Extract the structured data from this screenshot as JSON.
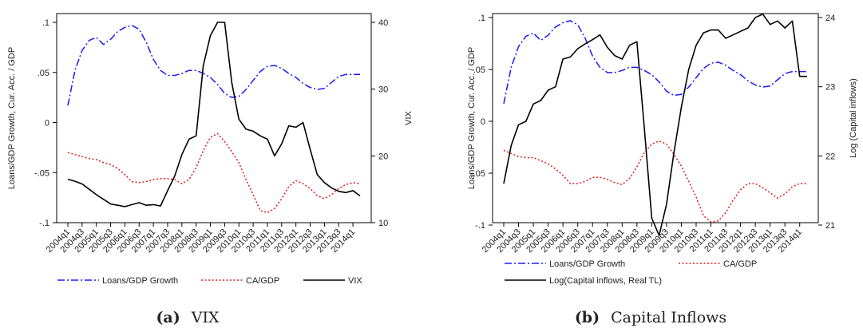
{
  "chart_data": [
    {
      "type": "line",
      "caption_label": "(a)",
      "caption_text": "VIX",
      "ylabel_left": "Loans/GDP Growth, Cur. Acc. / GDP",
      "ylabel_right": "VIX",
      "yticks_left": [
        ".1",
        ".05",
        "0",
        "-.05",
        "-.1"
      ],
      "yticks_left_values": [
        0.1,
        0.05,
        0,
        -0.05,
        -0.1
      ],
      "ylim_left": [
        -0.1,
        0.1
      ],
      "yticks_right": [
        "40",
        "30",
        "20",
        "10"
      ],
      "yticks_right_values": [
        40,
        30,
        20,
        10
      ],
      "ylim_right": [
        10,
        40
      ],
      "xticks": [
        "2004q1",
        "2004q3",
        "2005q1",
        "2005q3",
        "2006q1",
        "2006q3",
        "2007q1",
        "2007q3",
        "2008q1",
        "2008q3",
        "2009q1",
        "2009q3",
        "2010q1",
        "2010q3",
        "2011q1",
        "2011q3",
        "2012q1",
        "2012q3",
        "2013q1",
        "2013q3",
        "2014q1"
      ],
      "x": [
        "2004q1",
        "2004q2",
        "2004q3",
        "2004q4",
        "2005q1",
        "2005q2",
        "2005q3",
        "2005q4",
        "2006q1",
        "2006q2",
        "2006q3",
        "2006q4",
        "2007q1",
        "2007q2",
        "2007q3",
        "2007q4",
        "2008q1",
        "2008q2",
        "2008q3",
        "2008q4",
        "2009q1",
        "2009q2",
        "2009q3",
        "2009q4",
        "2010q1",
        "2010q2",
        "2010q3",
        "2010q4",
        "2011q1",
        "2011q2",
        "2011q3",
        "2011q4",
        "2012q1",
        "2012q2",
        "2012q3",
        "2012q4",
        "2013q1",
        "2013q2",
        "2013q3",
        "2013q4",
        "2014q1",
        "2014q2"
      ],
      "legend_position": "bottom",
      "series": [
        {
          "name": "Loans/GDP Growth",
          "axis": "left",
          "color": "#1a1aff",
          "dash": "dashdot",
          "values": [
            0.017,
            0.052,
            0.072,
            0.082,
            0.085,
            0.078,
            0.083,
            0.091,
            0.095,
            0.097,
            0.093,
            0.08,
            0.063,
            0.052,
            0.047,
            0.047,
            0.049,
            0.052,
            0.052,
            0.049,
            0.045,
            0.038,
            0.029,
            0.025,
            0.026,
            0.033,
            0.042,
            0.051,
            0.056,
            0.057,
            0.054,
            0.049,
            0.045,
            0.039,
            0.035,
            0.033,
            0.034,
            0.04,
            0.046,
            0.048,
            0.048,
            0.048
          ]
        },
        {
          "name": "CA/GDP",
          "axis": "left",
          "color": "#e41a1c",
          "dash": "dot",
          "values": [
            -0.03,
            -0.032,
            -0.034,
            -0.036,
            -0.037,
            -0.04,
            -0.042,
            -0.046,
            -0.052,
            -0.059,
            -0.06,
            -0.059,
            -0.057,
            -0.056,
            -0.056,
            -0.057,
            -0.061,
            -0.057,
            -0.045,
            -0.028,
            -0.015,
            -0.011,
            -0.019,
            -0.029,
            -0.04,
            -0.057,
            -0.072,
            -0.088,
            -0.09,
            -0.086,
            -0.076,
            -0.064,
            -0.058,
            -0.061,
            -0.066,
            -0.073,
            -0.076,
            -0.072,
            -0.066,
            -0.062,
            -0.06,
            -0.061
          ]
        },
        {
          "name": "VIX",
          "axis": "right",
          "color": "#000000",
          "dash": "solid",
          "values": [
            16.5,
            16.2,
            15.8,
            15.0,
            14.2,
            13.5,
            12.8,
            12.6,
            12.4,
            12.7,
            13.0,
            12.6,
            12.7,
            12.5,
            14.8,
            17.0,
            20.2,
            22.5,
            23.0,
            33.5,
            38.0,
            40.0,
            40.0,
            31.0,
            25.5,
            24.0,
            23.7,
            23.0,
            22.5,
            20.0,
            21.8,
            24.5,
            24.3,
            25.0,
            21.0,
            17.2,
            16.0,
            15.2,
            14.7,
            14.5,
            14.8,
            14.0
          ]
        }
      ]
    },
    {
      "type": "line",
      "caption_label": "(b)",
      "caption_text": "Capital Inflows",
      "ylabel_left": "Loans/GDP Growth, Cur. Acc. / GDP",
      "ylabel_right": "Log (Capital inflows)",
      "yticks_left": [
        ".1",
        ".05",
        "0",
        "-.05",
        "-.1"
      ],
      "yticks_left_values": [
        0.1,
        0.05,
        0,
        -0.05,
        -0.1
      ],
      "ylim_left": [
        -0.1,
        0.1
      ],
      "yticks_right": [
        "24",
        "23",
        "22",
        "21"
      ],
      "yticks_right_values": [
        24,
        23,
        22,
        21
      ],
      "ylim_right": [
        21,
        24
      ],
      "xticks": [
        "2004q1",
        "2004q3",
        "2005q1",
        "2005q3",
        "2006q1",
        "2006q3",
        "2007q1",
        "2007q3",
        "2008q1",
        "2008q3",
        "2009q1",
        "2009q3",
        "2010q1",
        "2010q3",
        "2011q1",
        "2011q3",
        "2012q1",
        "2012q3",
        "2013q1",
        "2013q3",
        "2014q1"
      ],
      "x": [
        "2004q1",
        "2004q2",
        "2004q3",
        "2004q4",
        "2005q1",
        "2005q2",
        "2005q3",
        "2005q4",
        "2006q1",
        "2006q2",
        "2006q3",
        "2006q4",
        "2007q1",
        "2007q2",
        "2007q3",
        "2007q4",
        "2008q1",
        "2008q2",
        "2008q3",
        "2008q4",
        "2009q1",
        "2009q2",
        "2009q3",
        "2009q4",
        "2010q1",
        "2010q2",
        "2010q3",
        "2010q4",
        "2011q1",
        "2011q2",
        "2011q3",
        "2011q4",
        "2012q1",
        "2012q2",
        "2012q3",
        "2012q4",
        "2013q1",
        "2013q2",
        "2013q3",
        "2013q4",
        "2014q1",
        "2014q2"
      ],
      "legend_position": "bottom",
      "series": [
        {
          "name": "Loans/GDP Growth",
          "axis": "left",
          "color": "#1a1aff",
          "dash": "dashdot",
          "values": [
            0.017,
            0.052,
            0.072,
            0.082,
            0.085,
            0.078,
            0.083,
            0.091,
            0.095,
            0.097,
            0.093,
            0.08,
            0.063,
            0.052,
            0.047,
            0.047,
            0.049,
            0.052,
            0.052,
            0.049,
            0.045,
            0.038,
            0.029,
            0.025,
            0.026,
            0.033,
            0.042,
            0.051,
            0.056,
            0.057,
            0.054,
            0.049,
            0.045,
            0.039,
            0.035,
            0.033,
            0.034,
            0.04,
            0.046,
            0.048,
            0.048,
            0.048
          ]
        },
        {
          "name": "CA/GDP",
          "axis": "left",
          "color": "#e41a1c",
          "dash": "dot",
          "values": [
            -0.028,
            -0.031,
            -0.034,
            -0.035,
            -0.035,
            -0.038,
            -0.041,
            -0.046,
            -0.052,
            -0.06,
            -0.06,
            -0.058,
            -0.054,
            -0.054,
            -0.056,
            -0.059,
            -0.061,
            -0.055,
            -0.044,
            -0.03,
            -0.022,
            -0.019,
            -0.022,
            -0.032,
            -0.043,
            -0.058,
            -0.073,
            -0.091,
            -0.097,
            -0.096,
            -0.088,
            -0.076,
            -0.066,
            -0.06,
            -0.06,
            -0.064,
            -0.069,
            -0.074,
            -0.07,
            -0.063,
            -0.06,
            -0.06
          ]
        },
        {
          "name": "Log(Capital inflows, Real TL)",
          "axis": "right",
          "color": "#000000",
          "dash": "solid",
          "values": [
            21.6,
            22.15,
            22.45,
            22.5,
            22.75,
            22.8,
            22.95,
            23.0,
            23.4,
            23.43,
            23.55,
            23.62,
            23.68,
            23.75,
            23.57,
            23.45,
            23.4,
            23.6,
            23.65,
            22.4,
            21.1,
            20.85,
            21.3,
            22.05,
            22.7,
            23.25,
            23.6,
            23.78,
            23.82,
            23.82,
            23.7,
            23.75,
            23.8,
            23.85,
            24.0,
            24.05,
            23.9,
            23.95,
            23.85,
            23.95,
            23.15,
            23.15
          ]
        }
      ]
    }
  ]
}
